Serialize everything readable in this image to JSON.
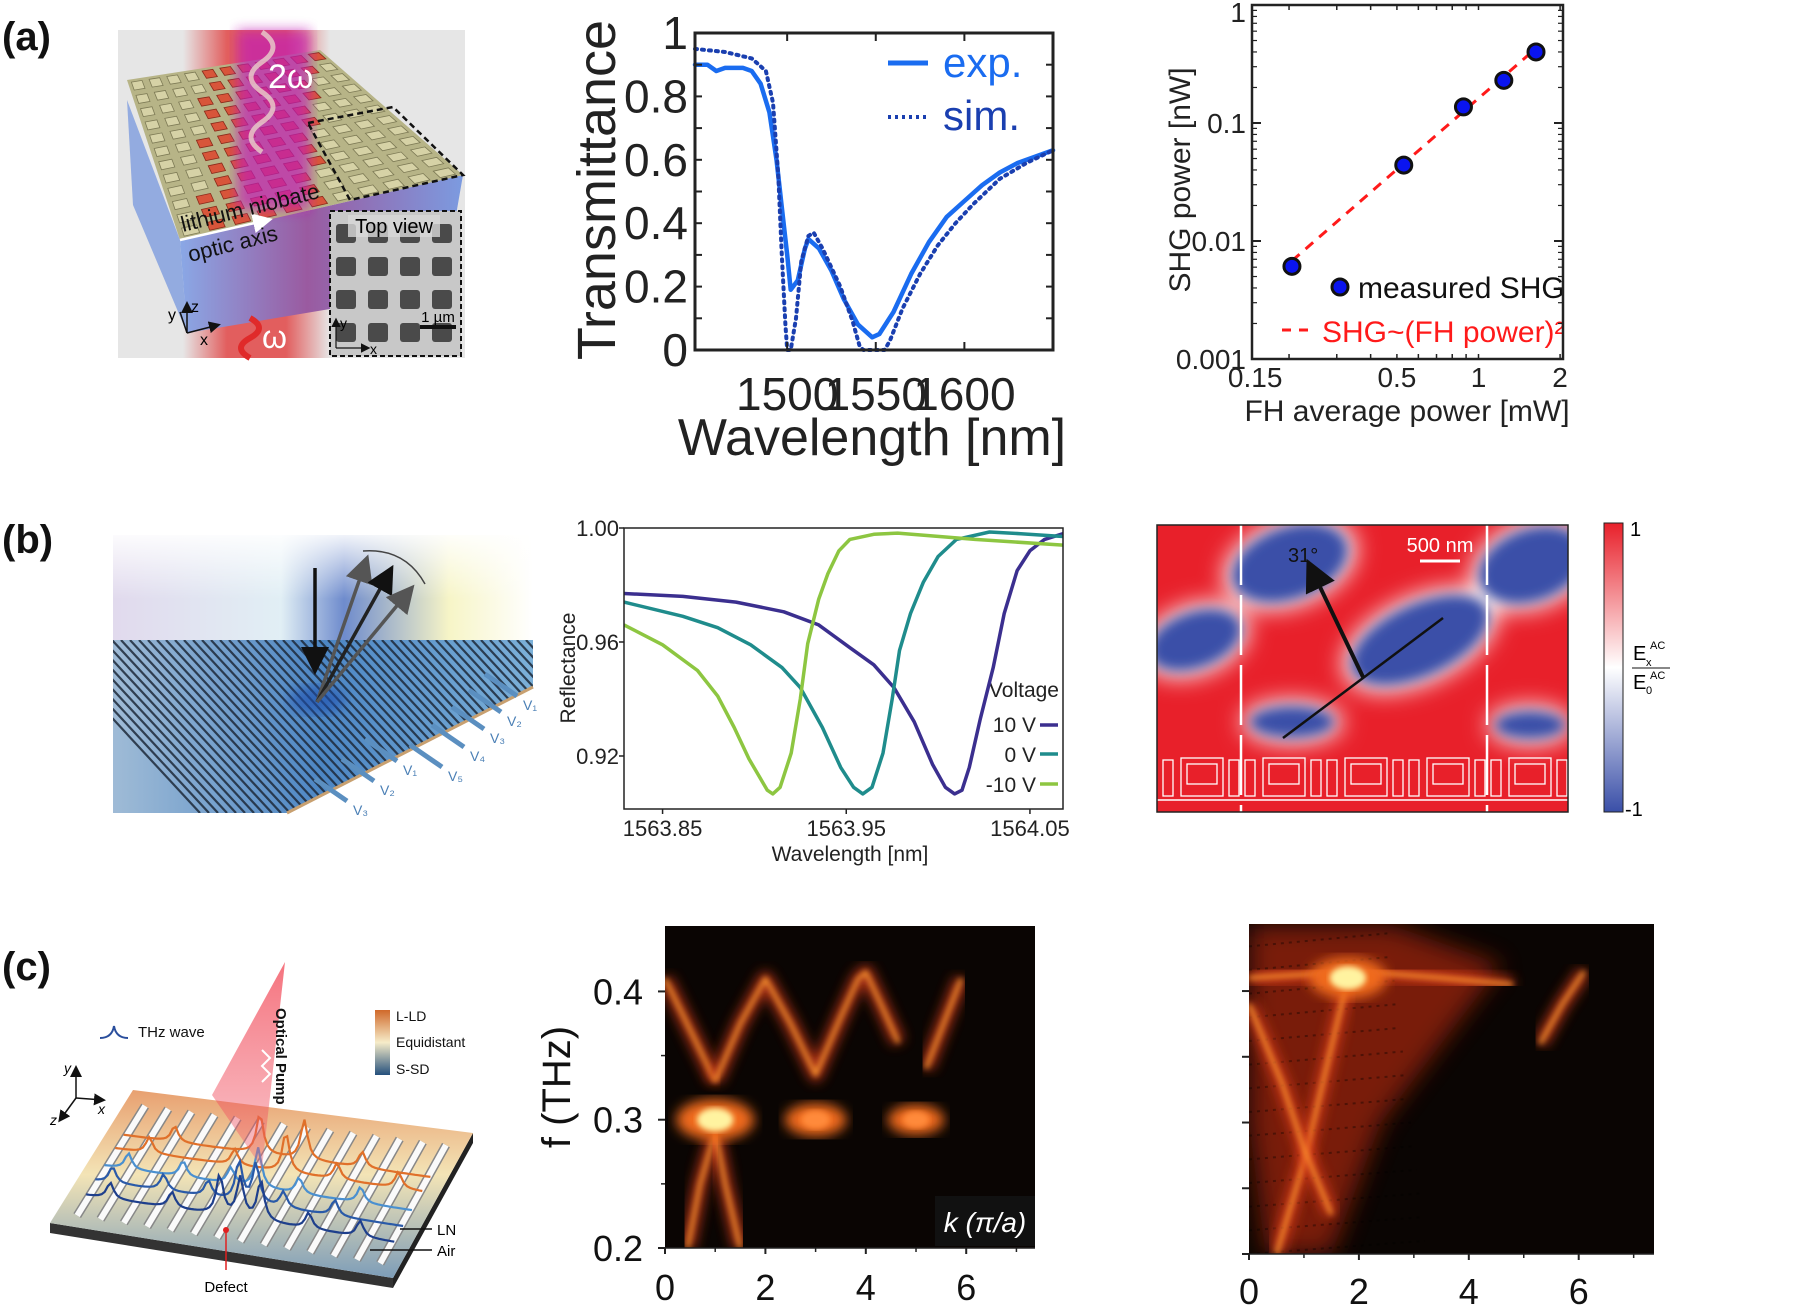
{
  "panels": {
    "a": "(a)",
    "b": "(b)",
    "c": "(c)"
  },
  "schematic_a": {
    "harmonic": "2ω",
    "fundamental": "ω",
    "material": "lithium niobate",
    "axis": "optic axis",
    "inset_title": "Top view",
    "scale_bar": "1 µm",
    "axis_x": "x",
    "axis_y": "y",
    "axis_z": "z",
    "inset_x": "x",
    "inset_y": "y"
  },
  "schematic_b": {
    "voltages": [
      "V₁",
      "V₂",
      "V₃",
      "V₄",
      "V₅",
      "V₁",
      "V₂",
      "V₃"
    ]
  },
  "schematic_c": {
    "thz_wave": "THz wave",
    "pump": "Optical Pump",
    "legend": [
      "L-LD",
      "Equidistant",
      "S-SD"
    ],
    "ln": "LN",
    "air": "Air",
    "defect": "Defect",
    "axis_x": "x",
    "axis_y": "y",
    "axis_z": "z"
  },
  "chart_data": [
    {
      "type": "line",
      "xlabel": "Wavelength [nm]",
      "ylabel": "Transmittance",
      "xlim": [
        1448,
        1650
      ],
      "ylim": [
        0,
        1
      ],
      "xticks": [
        1500,
        1550,
        1600
      ],
      "yticks": [
        0,
        0.2,
        0.4,
        0.6,
        0.8,
        1
      ],
      "ytick_labels": [
        "0",
        "0.2",
        "0.4",
        "0.6",
        "0.8",
        "1"
      ],
      "legend": "top-right",
      "series": [
        {
          "name": "exp.",
          "style": "solid",
          "color": "#1a6cf0",
          "points": [
            [
              1448,
              0.9
            ],
            [
              1455,
              0.9
            ],
            [
              1460,
              0.88
            ],
            [
              1465,
              0.89
            ],
            [
              1475,
              0.89
            ],
            [
              1480,
              0.88
            ],
            [
              1485,
              0.84
            ],
            [
              1490,
              0.75
            ],
            [
              1494,
              0.6
            ],
            [
              1497,
              0.45
            ],
            [
              1500,
              0.3
            ],
            [
              1502,
              0.19
            ],
            [
              1506,
              0.22
            ],
            [
              1510,
              0.32
            ],
            [
              1512,
              0.35
            ],
            [
              1518,
              0.32
            ],
            [
              1525,
              0.25
            ],
            [
              1532,
              0.16
            ],
            [
              1540,
              0.08
            ],
            [
              1548,
              0.04
            ],
            [
              1552,
              0.05
            ],
            [
              1560,
              0.12
            ],
            [
              1570,
              0.24
            ],
            [
              1580,
              0.34
            ],
            [
              1590,
              0.42
            ],
            [
              1600,
              0.47
            ],
            [
              1610,
              0.52
            ],
            [
              1620,
              0.56
            ],
            [
              1630,
              0.59
            ],
            [
              1640,
              0.61
            ],
            [
              1650,
              0.63
            ]
          ]
        },
        {
          "name": "sim.",
          "style": "dotted",
          "color": "#1a3fb0",
          "points": [
            [
              1448,
              0.95
            ],
            [
              1465,
              0.94
            ],
            [
              1480,
              0.92
            ],
            [
              1488,
              0.88
            ],
            [
              1492,
              0.78
            ],
            [
              1495,
              0.55
            ],
            [
              1497,
              0.3
            ],
            [
              1499,
              0.08
            ],
            [
              1500,
              0
            ],
            [
              1502,
              0
            ],
            [
              1505,
              0.1
            ],
            [
              1508,
              0.28
            ],
            [
              1512,
              0.36
            ],
            [
              1515,
              0.37
            ],
            [
              1520,
              0.32
            ],
            [
              1530,
              0.2
            ],
            [
              1537,
              0.09
            ],
            [
              1541,
              0.01
            ],
            [
              1543,
              0
            ],
            [
              1555,
              0
            ],
            [
              1558,
              0.03
            ],
            [
              1565,
              0.13
            ],
            [
              1575,
              0.24
            ],
            [
              1585,
              0.33
            ],
            [
              1595,
              0.4
            ],
            [
              1605,
              0.46
            ],
            [
              1620,
              0.54
            ],
            [
              1635,
              0.59
            ],
            [
              1650,
              0.63
            ]
          ]
        }
      ]
    },
    {
      "type": "scatter",
      "xlabel": "FH average power [mW]",
      "ylabel": "SHG power [nW]",
      "xscale": "log",
      "yscale": "log",
      "xlim": [
        0.146,
        2.05
      ],
      "ylim": [
        0.001,
        1
      ],
      "xticks": [
        0.15,
        0.5,
        1,
        2
      ],
      "xtick_labels": [
        "0.15",
        "0.5",
        "1",
        "2"
      ],
      "yticks": [
        0.001,
        0.01,
        0.1,
        1
      ],
      "ytick_labels": [
        "0.001",
        "0.01",
        "0.1",
        "1"
      ],
      "legend": "bottom-right",
      "series": [
        {
          "name": "measured SHG",
          "color": "#0a14f0",
          "points": [
            [
              0.205,
              0.0061
            ],
            [
              0.53,
              0.044
            ],
            [
              0.88,
              0.137
            ],
            [
              1.24,
              0.23
            ],
            [
              1.63,
              0.4
            ]
          ]
        },
        {
          "name": "SHG~(FH power)²",
          "style": "dashed",
          "color": "#ff1a1a",
          "points": [
            [
              0.205,
              0.0068
            ],
            [
              1.63,
              0.43
            ]
          ]
        }
      ]
    },
    {
      "type": "line",
      "xlabel": "Wavelength [nm]",
      "ylabel": "Reflectance",
      "xlim": [
        1563.829,
        1564.068
      ],
      "ylim": [
        0.9014,
        1.0
      ],
      "xticks": [
        1563.85,
        1563.95,
        1564.05
      ],
      "xtick_labels": [
        "1563.85",
        "1563.95",
        "1564.05"
      ],
      "yticks": [
        0.92,
        0.96,
        1.0
      ],
      "ytick_labels": [
        "0.92",
        "0.96",
        "1.00"
      ],
      "legend_title": "Voltage",
      "legend": "right",
      "series": [
        {
          "name": "10 V",
          "color": "#3b2f8f",
          "points": [
            [
              1563.829,
              0.977
            ],
            [
              1563.861,
              0.976
            ],
            [
              1563.89,
              0.974
            ],
            [
              1563.916,
              0.9706
            ],
            [
              1563.935,
              0.966
            ],
            [
              1563.952,
              0.958
            ],
            [
              1563.965,
              0.952
            ],
            [
              1563.976,
              0.944
            ],
            [
              1563.987,
              0.932
            ],
            [
              1563.997,
              0.917
            ],
            [
              1564.004,
              0.909
            ],
            [
              1564.009,
              0.9067
            ],
            [
              1564.013,
              0.908
            ],
            [
              1564.017,
              0.916
            ],
            [
              1564.023,
              0.933
            ],
            [
              1564.03,
              0.951
            ],
            [
              1564.036,
              0.97
            ],
            [
              1564.043,
              0.985
            ],
            [
              1564.05,
              0.992
            ],
            [
              1564.058,
              0.996
            ],
            [
              1564.068,
              0.998
            ]
          ]
        },
        {
          "name": "0 V",
          "color": "#1f8c8c",
          "points": [
            [
              1563.829,
              0.974
            ],
            [
              1563.861,
              0.969
            ],
            [
              1563.88,
              0.965
            ],
            [
              1563.898,
              0.959
            ],
            [
              1563.915,
              0.951
            ],
            [
              1563.925,
              0.944
            ],
            [
              1563.937,
              0.93
            ],
            [
              1563.947,
              0.916
            ],
            [
              1563.954,
              0.909
            ],
            [
              1563.959,
              0.9067
            ],
            [
              1563.964,
              0.909
            ],
            [
              1563.97,
              0.921
            ],
            [
              1563.975,
              0.94
            ],
            [
              1563.979,
              0.957
            ],
            [
              1563.985,
              0.97
            ],
            [
              1563.992,
              0.981
            ],
            [
              1564.0,
              0.99
            ],
            [
              1564.01,
              0.996
            ],
            [
              1564.028,
              0.9986
            ],
            [
              1564.045,
              0.998
            ],
            [
              1564.068,
              0.997
            ]
          ]
        },
        {
          "name": "-10 V",
          "color": "#8dc641",
          "points": [
            [
              1563.829,
              0.966
            ],
            [
              1563.85,
              0.959
            ],
            [
              1563.869,
              0.95
            ],
            [
              1563.88,
              0.941
            ],
            [
              1563.889,
              0.93
            ],
            [
              1563.897,
              0.919
            ],
            [
              1563.902,
              0.9135
            ],
            [
              1563.907,
              0.908
            ],
            [
              1563.91,
              0.9067
            ],
            [
              1563.914,
              0.909
            ],
            [
              1563.92,
              0.921
            ],
            [
              1563.925,
              0.94
            ],
            [
              1563.929,
              0.9594
            ],
            [
              1563.935,
              0.975
            ],
            [
              1563.94,
              0.984
            ],
            [
              1563.946,
              0.992
            ],
            [
              1563.952,
              0.996
            ],
            [
              1563.965,
              0.9978
            ],
            [
              1563.978,
              0.9982
            ],
            [
              1564.02,
              0.996
            ],
            [
              1564.068,
              0.994
            ]
          ]
        }
      ]
    },
    {
      "type": "heatmap",
      "colorbar": {
        "min": -1,
        "max": 1,
        "tick_max": "1",
        "tick_min": "-1",
        "label_num": "E",
        "label_num_sub": "x",
        "label_num_sup": "AC",
        "label_den": "E",
        "label_den_sub": "0",
        "label_den_sup": "AC",
        "color_max": "#e8202a",
        "color_mid": "#ffffff",
        "color_min": "#3a4fa8"
      },
      "annotations": {
        "angle": "31°",
        "scale_bar": "500 nm"
      }
    },
    {
      "type": "heatmap",
      "xlabel": "k (π/a)",
      "ylabel": "f (THz)",
      "xlim": [
        0,
        7.37
      ],
      "ylim": [
        0.2,
        0.451
      ],
      "xticks": [
        0,
        2,
        4,
        6
      ],
      "yticks": [
        0.2,
        0.3,
        0.4
      ],
      "ytick_labels": [
        "0.2",
        "0.3",
        "0.4"
      ],
      "bands": [
        [
          [
            0,
            0.41
          ],
          [
            0.5,
            0.37
          ],
          [
            1,
            0.33
          ]
        ],
        [
          [
            1,
            0.33
          ],
          [
            1.5,
            0.375
          ],
          [
            2,
            0.41
          ],
          [
            2.5,
            0.375
          ],
          [
            3,
            0.335
          ],
          [
            3.5,
            0.38
          ],
          [
            3.85,
            0.41
          ],
          [
            4,
            0.415
          ],
          [
            4.3,
            0.39
          ],
          [
            4.65,
            0.36
          ]
        ],
        [
          [
            5.2,
            0.34
          ],
          [
            5.6,
            0.38
          ],
          [
            5.9,
            0.41
          ]
        ],
        [
          [
            0.45,
            0.2
          ],
          [
            0.7,
            0.25
          ],
          [
            1,
            0.29
          ]
        ],
        [
          [
            1,
            0.29
          ],
          [
            1.2,
            0.25
          ],
          [
            1.5,
            0.2
          ]
        ]
      ],
      "bright_spots": [
        [
          1,
          0.3,
          1.0
        ],
        [
          3,
          0.3,
          0.7
        ],
        [
          5,
          0.3,
          0.6
        ]
      ],
      "streak": {
        "f": 0.3,
        "k_range": [
          0,
          3.4
        ]
      }
    },
    {
      "type": "heatmap",
      "xlim": [
        0,
        7.37
      ],
      "ylim": [
        0.2,
        0.451
      ],
      "xticks": [
        0,
        2,
        4,
        6
      ],
      "yticks": [
        0.2,
        0.25,
        0.3,
        0.35,
        0.4
      ],
      "bands": [
        [
          [
            0,
            0.41
          ],
          [
            2,
            0.415
          ],
          [
            3.5,
            0.41
          ],
          [
            4.8,
            0.405
          ]
        ],
        [
          [
            0.5,
            0.2
          ],
          [
            1.0,
            0.27
          ],
          [
            1.4,
            0.34
          ],
          [
            1.8,
            0.41
          ]
        ],
        [
          [
            0,
            0.39
          ],
          [
            0.6,
            0.33
          ],
          [
            1.0,
            0.28
          ],
          [
            1.5,
            0.23
          ]
        ],
        [
          [
            5.3,
            0.36
          ],
          [
            5.7,
            0.39
          ],
          [
            6.1,
            0.415
          ]
        ],
        [
          [
            6.4,
            0.41
          ],
          [
            7.0,
            0.41
          ]
        ]
      ],
      "diffuse_region": [
        [
          0,
          0.45
        ],
        [
          2.6,
          0.45
        ],
        [
          4.6,
          0.42
        ],
        [
          3.5,
          0.36
        ],
        [
          2.4,
          0.3
        ],
        [
          1.5,
          0.2
        ],
        [
          0.3,
          0.2
        ],
        [
          0,
          0.3
        ]
      ],
      "bright_spots": [
        [
          1.8,
          0.41,
          1.0
        ]
      ]
    }
  ]
}
